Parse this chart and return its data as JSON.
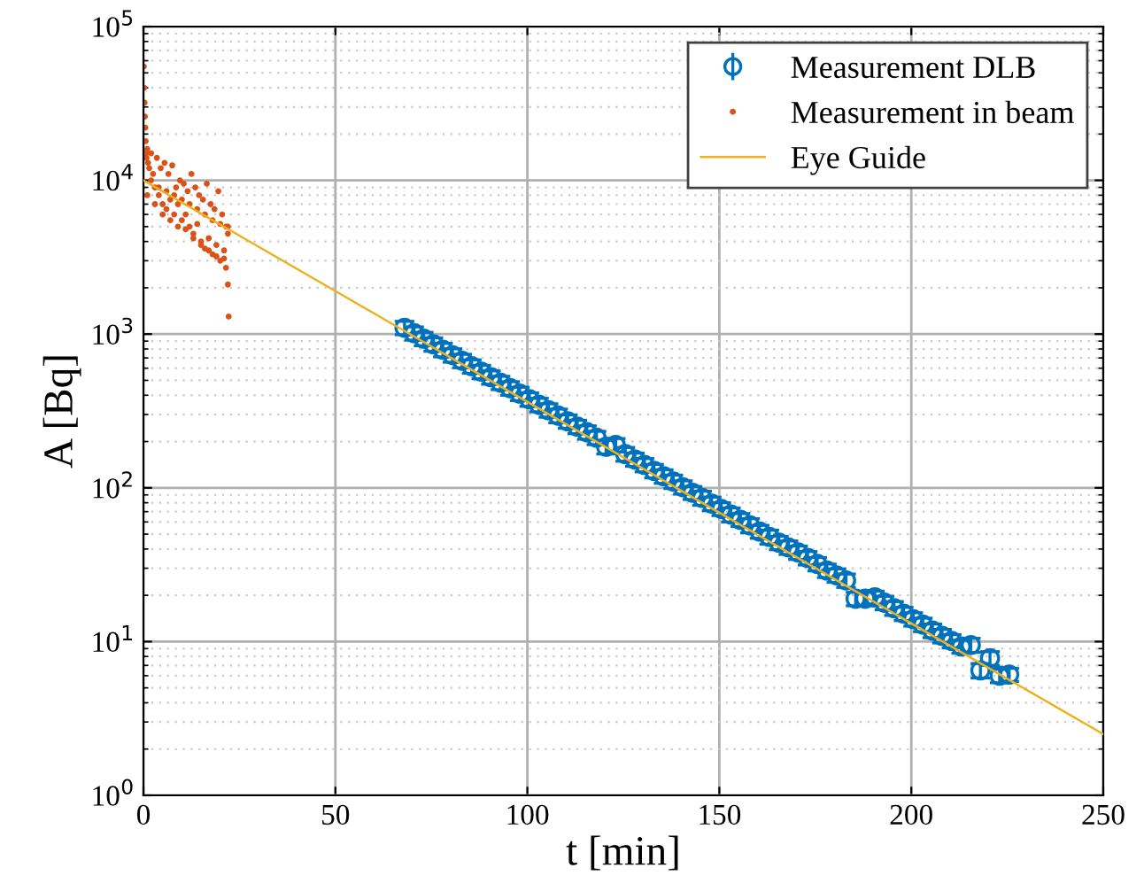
{
  "chart_data": {
    "type": "scatter",
    "xlabel": "t [min]",
    "ylabel": "A [Bq]",
    "log": "y",
    "grid": true,
    "legend": "top right",
    "xlim": [
      0,
      250
    ],
    "xticks": [
      0,
      50,
      100,
      150,
      200,
      250
    ],
    "ylim": [
      1,
      100000
    ],
    "yticks": [
      {
        "value": 1,
        "label": "10$^{0}$"
      },
      {
        "value": 10,
        "label": "10$^{1}$"
      },
      {
        "value": 100,
        "label": "10$^{2}$"
      },
      {
        "value": 1000,
        "label": "10$^{3}$"
      },
      {
        "value": 10000,
        "label": "10$^{4}$"
      },
      {
        "value": 100000,
        "label": "10$^{5}$"
      }
    ],
    "series": [
      {
        "name": "Measurement DLB",
        "marker": "circle",
        "color": "#0072bd",
        "x": [
          68,
          70.5,
          73,
          75.5,
          78,
          80.5,
          83,
          85.5,
          88,
          90.5,
          93,
          95.5,
          98,
          100.5,
          103,
          105.5,
          108,
          110.5,
          113,
          115.5,
          118,
          120.5,
          123,
          125.5,
          128,
          130.5,
          133,
          135.5,
          138,
          140.5,
          143,
          145.5,
          148,
          150.5,
          153,
          155.5,
          158,
          160.5,
          163,
          165.5,
          168,
          170.5,
          173,
          175.5,
          178,
          180.5,
          183,
          185.5,
          188,
          190.5,
          193,
          195.5,
          198,
          200.5,
          203,
          205.5,
          208,
          210.5,
          213,
          215.5,
          218,
          220.5,
          223,
          225.5
        ],
        "values": [
          1100,
          1013,
          933,
          859,
          791,
          729,
          671,
          618,
          569,
          524,
          483,
          445,
          410,
          377,
          347,
          320,
          295,
          271,
          250,
          230,
          212,
          185,
          190,
          166,
          153,
          141,
          129,
          119,
          110,
          101,
          93,
          86,
          79,
          73,
          67,
          62,
          57,
          52,
          48,
          44,
          41,
          38,
          35,
          32,
          29,
          27,
          25,
          19,
          19,
          19.4,
          17.9,
          16.5,
          15.2,
          14,
          12.9,
          11.8,
          10.9,
          10.1,
          9.3,
          9.5,
          6.5,
          7.8,
          6,
          6.1
        ],
        "errors": [
          110,
          100,
          93,
          86,
          79,
          73,
          67,
          62,
          57,
          52,
          48,
          45,
          41,
          38,
          35,
          32,
          30,
          27,
          25,
          23,
          21,
          19,
          19,
          17,
          15,
          14,
          13,
          12,
          11,
          10,
          9,
          9,
          8,
          7,
          7,
          6,
          6,
          5,
          5,
          4.4,
          4.1,
          3.8,
          3.5,
          3.2,
          2.9,
          2.7,
          2.5,
          1.9,
          1.9,
          1.9,
          1.8,
          1.7,
          1.5,
          1.4,
          1.3,
          1.2,
          1.1,
          1,
          0.9,
          1,
          0.7,
          0.8,
          0.6,
          0.6
        ]
      },
      {
        "name": "Measurement in beam",
        "marker": "circle",
        "color": "#d95319",
        "x": [
          0.1,
          0.2,
          0.3,
          0.4,
          0.5,
          0.6,
          0.7,
          0.8,
          1,
          1.2,
          1.5,
          2,
          2.5,
          3,
          3.5,
          4,
          4.5,
          5,
          5.5,
          6,
          6.5,
          7,
          7.5,
          8,
          8.5,
          9,
          9.5,
          10,
          10.5,
          11,
          11.5,
          12,
          12.5,
          13,
          13.5,
          14,
          14.5,
          15,
          15.5,
          16,
          16.5,
          17,
          17.5,
          18,
          18.5,
          19,
          19.5,
          20,
          20.5,
          21,
          21.5,
          22,
          1,
          3,
          5,
          7,
          9,
          11,
          13,
          15,
          17,
          19,
          21,
          2,
          4,
          6,
          8,
          10,
          12,
          14,
          16,
          18,
          20,
          22,
          21.5,
          22,
          22.2
        ],
        "values": [
          55000,
          40000,
          32000,
          26000,
          22000,
          18000,
          15000,
          14000,
          16000,
          13000,
          12000,
          15000,
          11000,
          9000,
          14000,
          8000,
          12000,
          7000,
          13000,
          6500,
          11000,
          7500,
          12500,
          6000,
          9000,
          7000,
          10000,
          5500,
          9500,
          6000,
          8500,
          5000,
          11000,
          4500,
          9000,
          5200,
          8000,
          4000,
          7500,
          3600,
          9500,
          4200,
          7000,
          3300,
          6500,
          3800,
          8500,
          3000,
          6000,
          3500,
          5000,
          4500,
          8000,
          7000,
          6000,
          5500,
          5000,
          4800,
          4200,
          3800,
          3500,
          3200,
          3100,
          10000,
          9000,
          8500,
          8000,
          7500,
          7000,
          6500,
          6000,
          5500,
          5200,
          5000,
          2700,
          2100,
          1300
        ]
      },
      {
        "name": "Eye Guide",
        "type": "line",
        "marker": "none",
        "color": "#edb120",
        "x": [
          0,
          250
        ],
        "values": [
          10000,
          2.5
        ]
      }
    ]
  }
}
